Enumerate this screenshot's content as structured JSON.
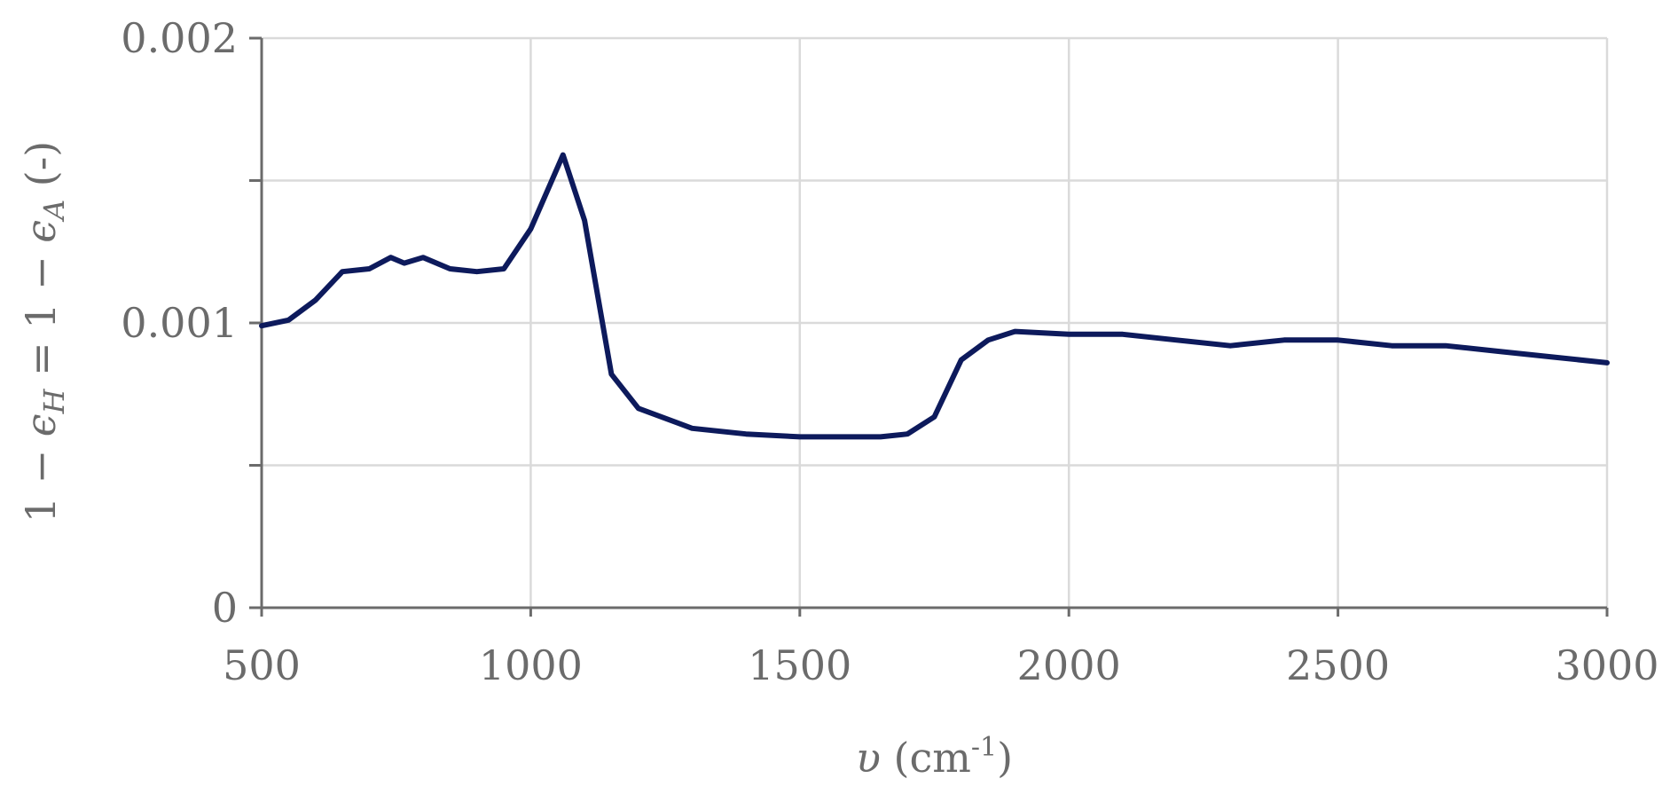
{
  "chart_data": {
    "type": "line",
    "title": "",
    "xlabel_var": "υ",
    "xlabel_unit_open": " (cm",
    "xlabel_unit_sup": "-1",
    "xlabel_unit_close": ")",
    "ylabel": "1 − ϵH = 1 − ϵA (-)",
    "ylabel_parts": {
      "p1": "1 − ",
      "eps1": "ϵ",
      "sub1": "H",
      "p2": " = 1 − ",
      "eps2": "ϵ",
      "sub2": "A",
      "p3": " (-)"
    },
    "xlim": [
      500,
      3000
    ],
    "ylim": [
      0,
      0.002
    ],
    "x_ticks": [
      500,
      1000,
      1500,
      2000,
      2500,
      3000
    ],
    "x_tick_labels": [
      "500",
      "1000",
      "1500",
      "2000",
      "2500",
      "3000"
    ],
    "y_ticks": [
      0,
      0.0005,
      0.001,
      0.0015,
      0.002
    ],
    "y_tick_labels": [
      "0",
      "",
      "0.001",
      "",
      "0.002"
    ],
    "grid": true,
    "line_color": "#0d1a5c",
    "series": [
      {
        "x": [
          500,
          550,
          600,
          650,
          700,
          740,
          765,
          800,
          850,
          900,
          950,
          1000,
          1060,
          1100,
          1150,
          1200,
          1300,
          1400,
          1500,
          1600,
          1650,
          1700,
          1750,
          1800,
          1850,
          1900,
          2000,
          2100,
          2200,
          2300,
          2400,
          2500,
          2600,
          2700,
          2800,
          2900,
          3000
        ],
        "values": [
          0.00099,
          0.00101,
          0.00108,
          0.00118,
          0.00119,
          0.00123,
          0.00121,
          0.00123,
          0.00119,
          0.00118,
          0.00119,
          0.00133,
          0.00159,
          0.00136,
          0.00082,
          0.0007,
          0.00063,
          0.00061,
          0.0006,
          0.0006,
          0.0006,
          0.00061,
          0.00067,
          0.00087,
          0.00094,
          0.00097,
          0.00096,
          0.00096,
          0.00094,
          0.00092,
          0.00094,
          0.00094,
          0.00092,
          0.00092,
          0.0009,
          0.00088,
          0.00086
        ]
      }
    ]
  }
}
